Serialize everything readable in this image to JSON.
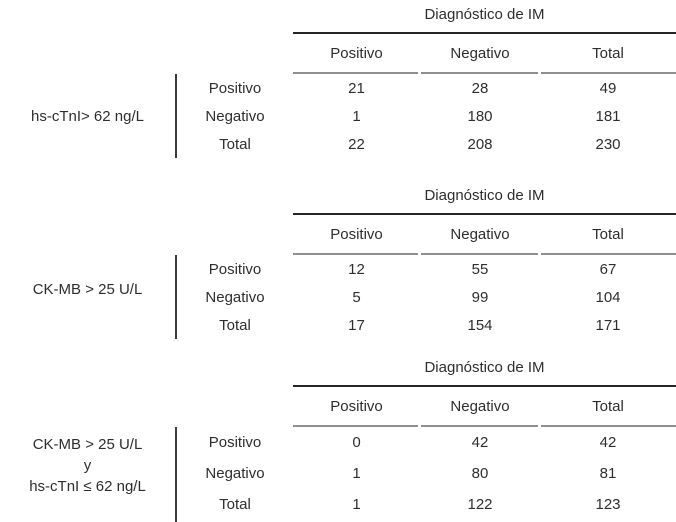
{
  "style": {
    "background": "#ffffff",
    "text_color": "#2e2e2e",
    "rule_dark": "#262626",
    "rule_gray": "#8f8f8f",
    "divider_color": "#3c3c3c"
  },
  "tables": [
    {
      "header": "Diagnóstico de IM",
      "columns": [
        "Positivo",
        "Negativo",
        "Total"
      ],
      "stub_lines": [
        "hs-cTnI> 62 ng/L"
      ],
      "rows": [
        {
          "label": "Positivo",
          "cells": [
            "21",
            "28",
            "49"
          ]
        },
        {
          "label": "Negativo",
          "cells": [
            "1",
            "180",
            "181"
          ]
        },
        {
          "label": "Total",
          "cells": [
            "22",
            "208",
            "230"
          ]
        }
      ]
    },
    {
      "header": "Diagnóstico de IM",
      "columns": [
        "Positivo",
        "Negativo",
        "Total"
      ],
      "stub_lines": [
        "CK-MB > 25 U/L"
      ],
      "rows": [
        {
          "label": "Positivo",
          "cells": [
            "12",
            "55",
            "67"
          ]
        },
        {
          "label": "Negativo",
          "cells": [
            "5",
            "99",
            "104"
          ]
        },
        {
          "label": "Total",
          "cells": [
            "17",
            "154",
            "171"
          ]
        }
      ]
    },
    {
      "header": "Diagnóstico de IM",
      "columns": [
        "Positivo",
        "Negativo",
        "Total"
      ],
      "stub_lines": [
        "CK-MB > 25 U/L",
        "y",
        "hs-cTnI ≤ 62 ng/L"
      ],
      "rows": [
        {
          "label": "Positivo",
          "cells": [
            "0",
            "42",
            "42"
          ]
        },
        {
          "label": "Negativo",
          "cells": [
            "1",
            "80",
            "81"
          ]
        },
        {
          "label": "Total",
          "cells": [
            "1",
            "122",
            "123"
          ]
        }
      ]
    }
  ]
}
